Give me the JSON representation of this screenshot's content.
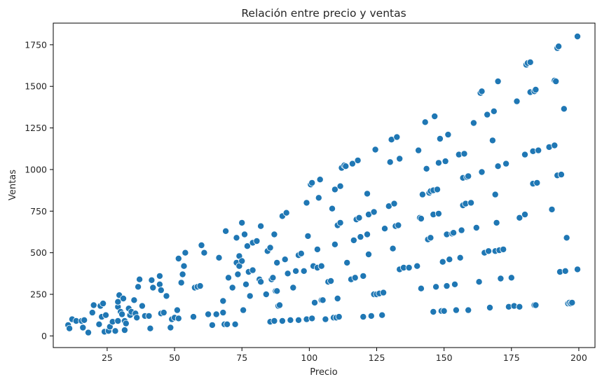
{
  "chart_data": {
    "type": "scatter",
    "title": "Relación entre precio y ventas",
    "xlabel": "Precio",
    "ylabel": "Ventas",
    "xlim": [
      5,
      206
    ],
    "ylim": [
      -70,
      1880
    ],
    "xticks": [
      25,
      50,
      75,
      100,
      125,
      150,
      175,
      200
    ],
    "yticks": [
      0,
      250,
      500,
      750,
      1000,
      1250,
      1500,
      1750
    ],
    "color": "#1f77b4",
    "grid": false,
    "points": [
      [
        10.5,
        65
      ],
      [
        11,
        45
      ],
      [
        12,
        100
      ],
      [
        13.5,
        90
      ],
      [
        15.5,
        90
      ],
      [
        16,
        50
      ],
      [
        16.5,
        95
      ],
      [
        18,
        20
      ],
      [
        19.5,
        140
      ],
      [
        20,
        185
      ],
      [
        22,
        70
      ],
      [
        22.5,
        180
      ],
      [
        23,
        115
      ],
      [
        23.5,
        195
      ],
      [
        24,
        25
      ],
      [
        24.5,
        125
      ],
      [
        25.5,
        30
      ],
      [
        26,
        55
      ],
      [
        27,
        85
      ],
      [
        28,
        30
      ],
      [
        29,
        90
      ],
      [
        29,
        175
      ],
      [
        29,
        205
      ],
      [
        29.5,
        245
      ],
      [
        30,
        145
      ],
      [
        30.5,
        130
      ],
      [
        31,
        225
      ],
      [
        31.5,
        35
      ],
      [
        31.5,
        90
      ],
      [
        32,
        75
      ],
      [
        33,
        165
      ],
      [
        33.5,
        125
      ],
      [
        34,
        145
      ],
      [
        35,
        215
      ],
      [
        35.5,
        135
      ],
      [
        36,
        110
      ],
      [
        36.5,
        295
      ],
      [
        37,
        340
      ],
      [
        38,
        180
      ],
      [
        39,
        120
      ],
      [
        40.5,
        120
      ],
      [
        41,
        45
      ],
      [
        41.5,
        335
      ],
      [
        42,
        290
      ],
      [
        44.5,
        360
      ],
      [
        44.5,
        310
      ],
      [
        45,
        275
      ],
      [
        45,
        135
      ],
      [
        46,
        140
      ],
      [
        47,
        240
      ],
      [
        48.5,
        50
      ],
      [
        49,
        100
      ],
      [
        50,
        110
      ],
      [
        51,
        155
      ],
      [
        51.5,
        105
      ],
      [
        51.5,
        465
      ],
      [
        52.5,
        320
      ],
      [
        53,
        370
      ],
      [
        53.5,
        420
      ],
      [
        54,
        500
      ],
      [
        57,
        115
      ],
      [
        57.5,
        290
      ],
      [
        58.5,
        295
      ],
      [
        59.5,
        300
      ],
      [
        60,
        545
      ],
      [
        61,
        500
      ],
      [
        62.5,
        130
      ],
      [
        64,
        65
      ],
      [
        65.5,
        130
      ],
      [
        66.5,
        470
      ],
      [
        68,
        140
      ],
      [
        68,
        210
      ],
      [
        68.5,
        70
      ],
      [
        69,
        630
      ],
      [
        69.5,
        70
      ],
      [
        70,
        350
      ],
      [
        71.5,
        290
      ],
      [
        72.5,
        70
      ],
      [
        73,
        590
      ],
      [
        73,
        440
      ],
      [
        73.5,
        370
      ],
      [
        74,
        420
      ],
      [
        74,
        480
      ],
      [
        75,
        680
      ],
      [
        75,
        450
      ],
      [
        75.5,
        155
      ],
      [
        76,
        610
      ],
      [
        76.5,
        310
      ],
      [
        77,
        540
      ],
      [
        77.5,
        385
      ],
      [
        78,
        240
      ],
      [
        79,
        560
      ],
      [
        79,
        395
      ],
      [
        80.5,
        570
      ],
      [
        81.5,
        340
      ],
      [
        82,
        660
      ],
      [
        82,
        325
      ],
      [
        84,
        250
      ],
      [
        84.5,
        510
      ],
      [
        85.5,
        530
      ],
      [
        85.5,
        85
      ],
      [
        86,
        340
      ],
      [
        86.5,
        350
      ],
      [
        87,
        610
      ],
      [
        87,
        90
      ],
      [
        87.5,
        270
      ],
      [
        88,
        440
      ],
      [
        88,
        270
      ],
      [
        88.5,
        180
      ],
      [
        89,
        185
      ],
      [
        90,
        720
      ],
      [
        90,
        90
      ],
      [
        91,
        460
      ],
      [
        91.5,
        740
      ],
      [
        92,
        375
      ],
      [
        93,
        95
      ],
      [
        94,
        290
      ],
      [
        95,
        390
      ],
      [
        96,
        485
      ],
      [
        96,
        95
      ],
      [
        97,
        495
      ],
      [
        98,
        390
      ],
      [
        99,
        800
      ],
      [
        99,
        100
      ],
      [
        99.5,
        600
      ],
      [
        100.5,
        910
      ],
      [
        101,
        105
      ],
      [
        101,
        920
      ],
      [
        101.5,
        420
      ],
      [
        102,
        200
      ],
      [
        103,
        410
      ],
      [
        103,
        520
      ],
      [
        103.5,
        830
      ],
      [
        104,
        940
      ],
      [
        104.5,
        420
      ],
      [
        104.5,
        215
      ],
      [
        105,
        215
      ],
      [
        106,
        100
      ],
      [
        107,
        325
      ],
      [
        108,
        330
      ],
      [
        108.5,
        765
      ],
      [
        109,
        110
      ],
      [
        109.5,
        550
      ],
      [
        109.5,
        880
      ],
      [
        110,
        110
      ],
      [
        110.5,
        665
      ],
      [
        110.5,
        225
      ],
      [
        111,
        115
      ],
      [
        111.5,
        680
      ],
      [
        111.5,
        900
      ],
      [
        112,
        1010
      ],
      [
        113,
        1025
      ],
      [
        113.5,
        1020
      ],
      [
        114,
        440
      ],
      [
        115.5,
        340
      ],
      [
        116,
        1035
      ],
      [
        116.5,
        575
      ],
      [
        117,
        350
      ],
      [
        117.5,
        700
      ],
      [
        118,
        1055
      ],
      [
        118.5,
        710
      ],
      [
        119,
        595
      ],
      [
        120,
        115
      ],
      [
        120,
        360
      ],
      [
        121.5,
        610
      ],
      [
        121.5,
        855
      ],
      [
        122,
        490
      ],
      [
        122,
        730
      ],
      [
        123,
        120
      ],
      [
        124,
        745
      ],
      [
        124,
        250
      ],
      [
        124.5,
        1120
      ],
      [
        125,
        250
      ],
      [
        126,
        255
      ],
      [
        127,
        125
      ],
      [
        127.5,
        260
      ],
      [
        128,
        645
      ],
      [
        129.5,
        780
      ],
      [
        130,
        1045
      ],
      [
        130.5,
        1180
      ],
      [
        131,
        525
      ],
      [
        131.5,
        795
      ],
      [
        132,
        660
      ],
      [
        132.5,
        1195
      ],
      [
        133,
        665
      ],
      [
        133.5,
        400
      ],
      [
        133.5,
        1065
      ],
      [
        135,
        410
      ],
      [
        137,
        410
      ],
      [
        140,
        420
      ],
      [
        140.5,
        1115
      ],
      [
        141,
        710
      ],
      [
        141.5,
        705
      ],
      [
        141.5,
        285
      ],
      [
        142,
        850
      ],
      [
        143,
        1285
      ],
      [
        143.5,
        1005
      ],
      [
        144,
        580
      ],
      [
        144.5,
        860
      ],
      [
        145,
        590
      ],
      [
        145,
        870
      ],
      [
        146,
        875
      ],
      [
        146,
        730
      ],
      [
        146,
        145
      ],
      [
        146.5,
        1320
      ],
      [
        147,
        295
      ],
      [
        147.5,
        880
      ],
      [
        148,
        735
      ],
      [
        148,
        1040
      ],
      [
        148.5,
        1185
      ],
      [
        149,
        150
      ],
      [
        149.5,
        445
      ],
      [
        150,
        150
      ],
      [
        150.5,
        1050
      ],
      [
        151,
        610
      ],
      [
        151,
        300
      ],
      [
        151.5,
        1210
      ],
      [
        152,
        460
      ],
      [
        153,
        615
      ],
      [
        153.5,
        620
      ],
      [
        154,
        310
      ],
      [
        154.5,
        155
      ],
      [
        155.5,
        1090
      ],
      [
        156,
        470
      ],
      [
        156.5,
        635
      ],
      [
        157,
        785
      ],
      [
        157,
        950
      ],
      [
        157.5,
        1095
      ],
      [
        158,
        795
      ],
      [
        158.5,
        955
      ],
      [
        159,
        155
      ],
      [
        159,
        960
      ],
      [
        160,
        800
      ],
      [
        161,
        1280
      ],
      [
        162,
        650
      ],
      [
        163,
        325
      ],
      [
        163.5,
        1460
      ],
      [
        164,
        985
      ],
      [
        164,
        1470
      ],
      [
        165,
        500
      ],
      [
        166,
        1330
      ],
      [
        166.5,
        510
      ],
      [
        167,
        170
      ],
      [
        168,
        1175
      ],
      [
        168.5,
        1350
      ],
      [
        169,
        510
      ],
      [
        169,
        850
      ],
      [
        169.5,
        680
      ],
      [
        170,
        1020
      ],
      [
        170,
        1530
      ],
      [
        170.5,
        515
      ],
      [
        171,
        345
      ],
      [
        172,
        520
      ],
      [
        173,
        1035
      ],
      [
        174,
        175
      ],
      [
        175,
        350
      ],
      [
        176,
        180
      ],
      [
        177,
        1410
      ],
      [
        178,
        175
      ],
      [
        178,
        710
      ],
      [
        180,
        730
      ],
      [
        180,
        1090
      ],
      [
        180.5,
        1630
      ],
      [
        181,
        1640
      ],
      [
        182,
        1465
      ],
      [
        182,
        1645
      ],
      [
        183,
        1110
      ],
      [
        183,
        915
      ],
      [
        183.5,
        185
      ],
      [
        183.5,
        1470
      ],
      [
        184,
        1480
      ],
      [
        184,
        185
      ],
      [
        184.5,
        920
      ],
      [
        185,
        1115
      ],
      [
        189,
        1135
      ],
      [
        190,
        760
      ],
      [
        191,
        1145
      ],
      [
        191,
        1535
      ],
      [
        191.5,
        1530
      ],
      [
        192,
        1730
      ],
      [
        192,
        965
      ],
      [
        192.5,
        1740
      ],
      [
        193,
        385
      ],
      [
        193.5,
        970
      ],
      [
        194.5,
        1365
      ],
      [
        195,
        390
      ],
      [
        195.5,
        590
      ],
      [
        196,
        195
      ],
      [
        196.5,
        200
      ],
      [
        197,
        195
      ],
      [
        197.5,
        200
      ],
      [
        199.5,
        400
      ],
      [
        199.5,
        1800
      ]
    ]
  }
}
